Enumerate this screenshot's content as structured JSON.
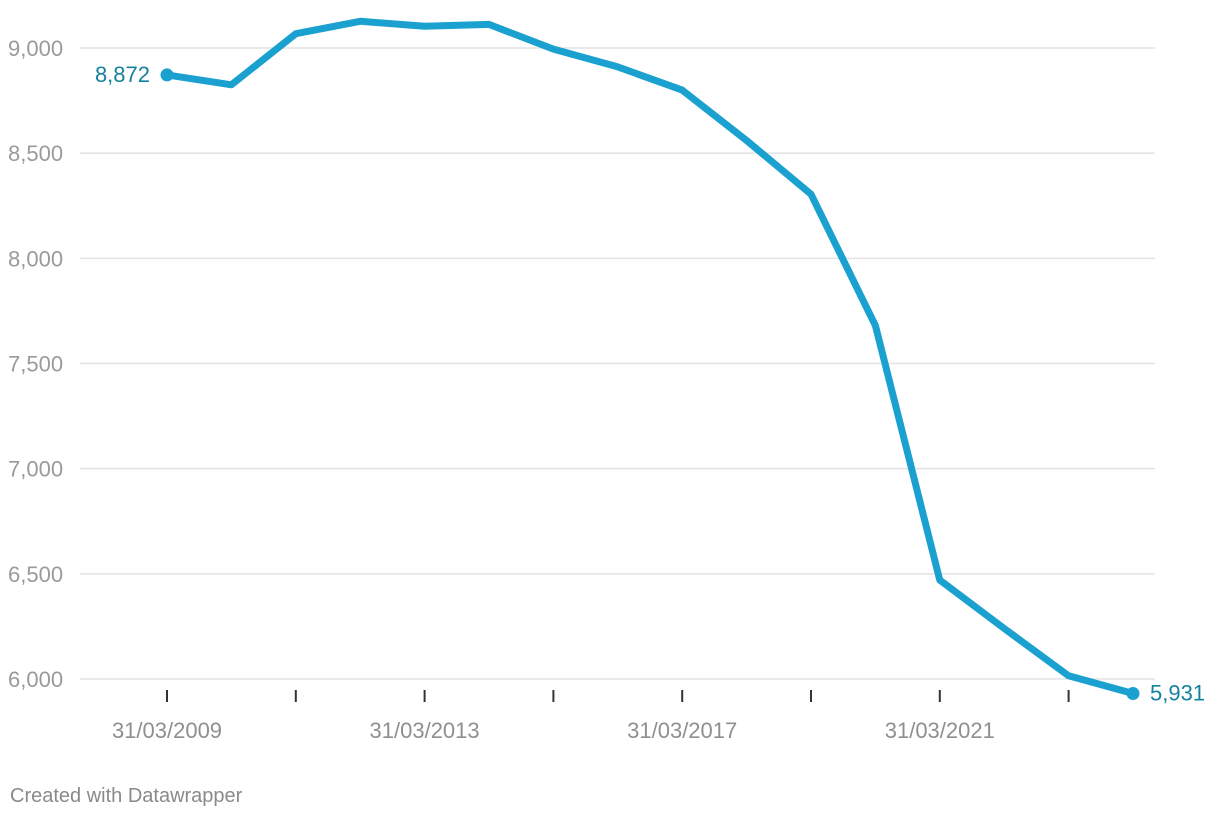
{
  "footer": {
    "credit": "Created with Datawrapper"
  },
  "chart_data": {
    "type": "line",
    "title": "",
    "xlabel": "",
    "ylabel": "",
    "x": [
      "31/03/2009",
      "31/03/2010",
      "31/03/2011",
      "31/03/2012",
      "31/03/2013",
      "31/03/2014",
      "31/03/2015",
      "31/03/2016",
      "31/03/2017",
      "31/03/2018",
      "31/03/2019",
      "31/03/2020",
      "31/03/2021",
      "31/03/2022",
      "31/03/2023",
      "31/03/2024"
    ],
    "series": [
      {
        "values": [
          8872,
          8825,
          9068,
          9127,
          9103,
          9112,
          8995,
          8910,
          8800,
          8560,
          8305,
          7680,
          6470,
          6240,
          6015,
          5931
        ],
        "color": "#1aa1d0"
      }
    ],
    "ylim": [
      6000,
      9000
    ],
    "yticks": [
      6000,
      6500,
      7000,
      7500,
      8000,
      8500,
      9000
    ],
    "ytick_labels": [
      "6,000",
      "6,500",
      "7,000",
      "7,500",
      "8,000",
      "8,500",
      "9,000"
    ],
    "xtick_labels": [
      "31/03/2009",
      "31/03/2013",
      "31/03/2017",
      "31/03/2021"
    ],
    "xtick_label_indices": [
      0,
      4,
      8,
      12
    ],
    "tick_marks_at_indices": [
      0,
      2,
      4,
      6,
      8,
      10,
      12,
      14
    ],
    "data_labels": [
      {
        "index": 0,
        "text": "8,872"
      },
      {
        "index": 15,
        "text": "5,931"
      }
    ],
    "grid": true,
    "legend": "none",
    "label_color": "#14829f"
  }
}
